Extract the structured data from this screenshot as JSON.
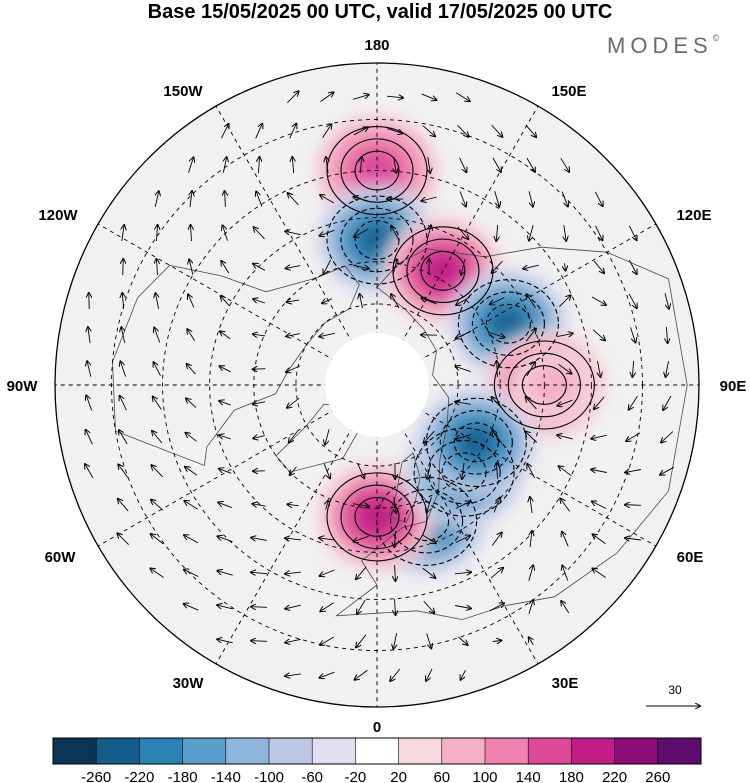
{
  "header": {
    "title": "Base 15/05/2025 00 UTC, valid 17/05/2025 00 UTC",
    "logo_text": "MODES",
    "logo_mark": "©"
  },
  "map": {
    "projection": "north-polar-stereographic",
    "longitude_labels": {
      "top": "180",
      "top_left": "150W",
      "top_right": "150E",
      "upper_left": "120W",
      "upper_right": "120E",
      "left": "90W",
      "right": "90E",
      "lower_left": "60W",
      "lower_right": "60E",
      "bottom_left": "30W",
      "bottom_right": "30E",
      "bottom": "0"
    },
    "vector_reference": {
      "label": "30"
    },
    "anomaly_centers": [
      {
        "sign": "positive",
        "lon": 180,
        "lat": 40,
        "strength": "moderate"
      },
      {
        "sign": "negative",
        "lon": 180,
        "lat": 55,
        "strength": "strong"
      },
      {
        "sign": "positive",
        "lon": 150,
        "lat": 58,
        "strength": "strong"
      },
      {
        "sign": "negative",
        "lon": 115,
        "lat": 55,
        "strength": "strong"
      },
      {
        "sign": "positive",
        "lon": 90,
        "lat": 50,
        "strength": "strong"
      },
      {
        "sign": "negative",
        "lon": 20,
        "lat": 55,
        "strength": "strong"
      },
      {
        "sign": "positive",
        "lon": 0,
        "lat": 58,
        "strength": "strong"
      },
      {
        "sign": "negative",
        "lon": 45,
        "lat": 60,
        "strength": "strong"
      },
      {
        "sign": "negative",
        "lon": 60,
        "lat": 62,
        "strength": "strong"
      },
      {
        "sign": "positive",
        "lon": 90,
        "lat": 48,
        "strength": "weak"
      }
    ]
  },
  "colorbar": {
    "ticks": [
      "-260",
      "-220",
      "-180",
      "-140",
      "-100",
      "-60",
      "-20",
      "20",
      "60",
      "100",
      "140",
      "180",
      "220",
      "260"
    ],
    "colors": [
      "#0b3556",
      "#135d8b",
      "#2a84b5",
      "#579fcb",
      "#8fb6dc",
      "#bcc6e5",
      "#e2e0f0",
      "#ffffff",
      "#f7dadf",
      "#f5b0c6",
      "#ef82ae",
      "#de4899",
      "#c21c86",
      "#8c0d78",
      "#5e0b6e"
    ]
  }
}
